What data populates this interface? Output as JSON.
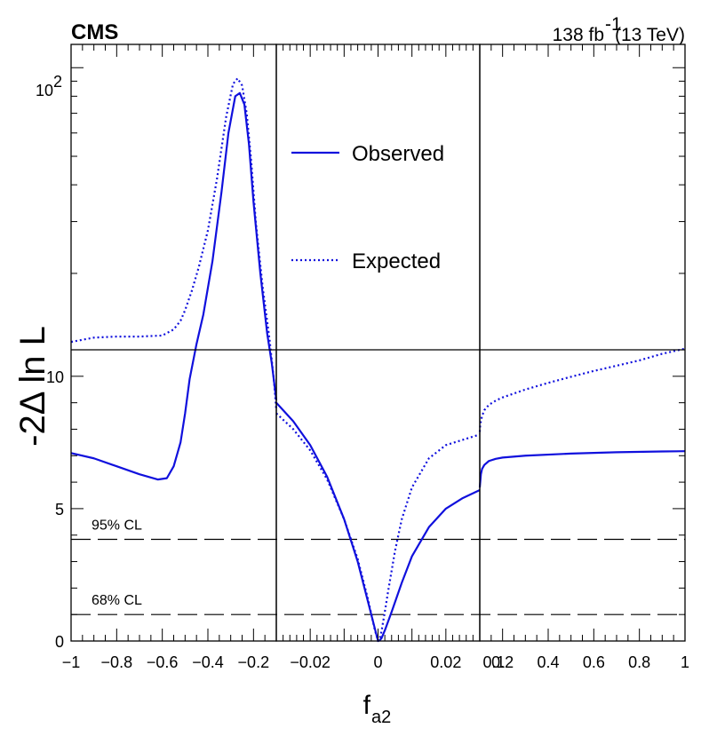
{
  "chart_data": {
    "type": "line",
    "experiment": "CMS",
    "lumi_text": "138 fb",
    "lumi_exp": "-1",
    "energy_text": "(13 TeV)",
    "ylabel": "-2Δ ln L",
    "xlabel_main": "f",
    "xlabel_sub": "a2",
    "y_upper_tick": "10",
    "y_upper_exp": "2",
    "y_lower_ticks": [
      "0",
      "5",
      "10"
    ],
    "ylim_lower": [
      0,
      11
    ],
    "ylim_upper_log": [
      11,
      120
    ],
    "panels": [
      {
        "name": "left",
        "xlim": [
          -1,
          -0.1
        ],
        "tick_values": [
          -1,
          -0.8,
          -0.6,
          -0.4,
          -0.2
        ],
        "tick_labels": [
          "−1",
          "−0.8",
          "−0.6",
          "−0.4",
          "−0.2"
        ]
      },
      {
        "name": "middle",
        "xlim": [
          -0.03,
          0.03
        ],
        "tick_values": [
          -0.02,
          0,
          0.02
        ],
        "tick_labels": [
          "−0.02",
          "0",
          "0.02"
        ]
      },
      {
        "name": "right",
        "xlim": [
          0.1,
          1
        ],
        "tick_values": [
          0.2,
          0.4,
          0.6,
          0.8,
          1
        ],
        "tick_labels": [
          "0.2",
          "0.4",
          "0.6",
          "0.8",
          "1"
        ]
      }
    ],
    "extra_tick_labels": [
      {
        "value": 0.1,
        "panel": "right",
        "label": "0.1"
      }
    ],
    "legend": [
      {
        "label": "Observed",
        "style": "solid"
      },
      {
        "label": "Expected",
        "style": "dotted"
      }
    ],
    "cl_lines": [
      {
        "label": "95% CL",
        "y": 3.84
      },
      {
        "label": "68% CL",
        "y": 1.0
      }
    ],
    "series": [
      {
        "name": "Observed",
        "style": "solid",
        "color": "#1010dd",
        "segments": [
          {
            "panel": "left",
            "x": [
              -1.0,
              -0.9,
              -0.8,
              -0.7,
              -0.62,
              -0.58,
              -0.55,
              -0.52,
              -0.5,
              -0.48,
              -0.45,
              -0.42,
              -0.38,
              -0.34,
              -0.31,
              -0.28,
              -0.26,
              -0.24,
              -0.22,
              -0.2,
              -0.17,
              -0.14,
              -0.12,
              -0.1
            ],
            "y": [
              7.1,
              6.9,
              6.6,
              6.3,
              6.1,
              6.15,
              6.6,
              7.5,
              8.6,
              9.9,
              11.5,
              14.5,
              22,
              38,
              60,
              80,
              82,
              75,
              55,
              35,
              20,
              12.5,
              10.5,
              9.1
            ]
          },
          {
            "panel": "middle",
            "x": [
              -0.03,
              -0.025,
              -0.02,
              -0.015,
              -0.01,
              -0.006,
              -0.003,
              -0.001,
              0.0,
              0.0005,
              0.001,
              0.002,
              0.004,
              0.007,
              0.01,
              0.015,
              0.02,
              0.025,
              0.03
            ],
            "y": [
              9.0,
              8.3,
              7.4,
              6.2,
              4.6,
              3.0,
              1.5,
              0.5,
              0.0,
              0.03,
              0.1,
              0.4,
              1.1,
              2.2,
              3.2,
              4.3,
              5.0,
              5.4,
              5.7
            ]
          },
          {
            "panel": "right",
            "x": [
              0.1,
              0.105,
              0.11,
              0.12,
              0.14,
              0.17,
              0.2,
              0.3,
              0.5,
              0.7,
              0.9,
              1.0
            ],
            "y": [
              5.8,
              6.3,
              6.5,
              6.65,
              6.8,
              6.88,
              6.93,
              7.0,
              7.08,
              7.13,
              7.16,
              7.17
            ]
          }
        ]
      },
      {
        "name": "Expected",
        "style": "dotted",
        "color": "#1010dd",
        "segments": [
          {
            "panel": "left",
            "x": [
              -1.0,
              -0.9,
              -0.8,
              -0.7,
              -0.6,
              -0.55,
              -0.52,
              -0.5,
              -0.47,
              -0.44,
              -0.4,
              -0.36,
              -0.32,
              -0.29,
              -0.27,
              -0.25,
              -0.23,
              -0.21,
              -0.19,
              -0.16,
              -0.13,
              -0.11,
              -0.1
            ],
            "y": [
              11.7,
              12.1,
              12.2,
              12.2,
              12.3,
              12.9,
              13.8,
              15,
              17.5,
              21,
              28,
              42,
              68,
              88,
              92,
              87,
              70,
              48,
              30,
              18,
              12,
              9.8,
              8.7
            ]
          },
          {
            "panel": "middle",
            "x": [
              -0.03,
              -0.025,
              -0.02,
              -0.015,
              -0.01,
              -0.006,
              -0.003,
              -0.001,
              0.0,
              0.0005,
              0.001,
              0.002,
              0.003,
              0.005,
              0.007,
              0.01,
              0.015,
              0.02,
              0.025,
              0.03
            ],
            "y": [
              8.6,
              8.0,
              7.2,
              6.1,
              4.6,
              3.1,
              1.6,
              0.45,
              0.0,
              0.1,
              0.35,
              1.1,
              1.9,
              3.4,
              4.6,
              5.8,
              6.9,
              7.4,
              7.6,
              7.8
            ]
          },
          {
            "panel": "right",
            "x": [
              0.1,
              0.102,
              0.105,
              0.11,
              0.12,
              0.14,
              0.17,
              0.2,
              0.3,
              0.4,
              0.5,
              0.6,
              0.7,
              0.8,
              0.9,
              1.0
            ],
            "y": [
              7.9,
              8.15,
              8.3,
              8.5,
              8.72,
              8.92,
              9.08,
              9.2,
              9.5,
              9.75,
              9.98,
              10.2,
              10.4,
              10.6,
              10.85,
              11.1
            ]
          }
        ]
      }
    ]
  }
}
